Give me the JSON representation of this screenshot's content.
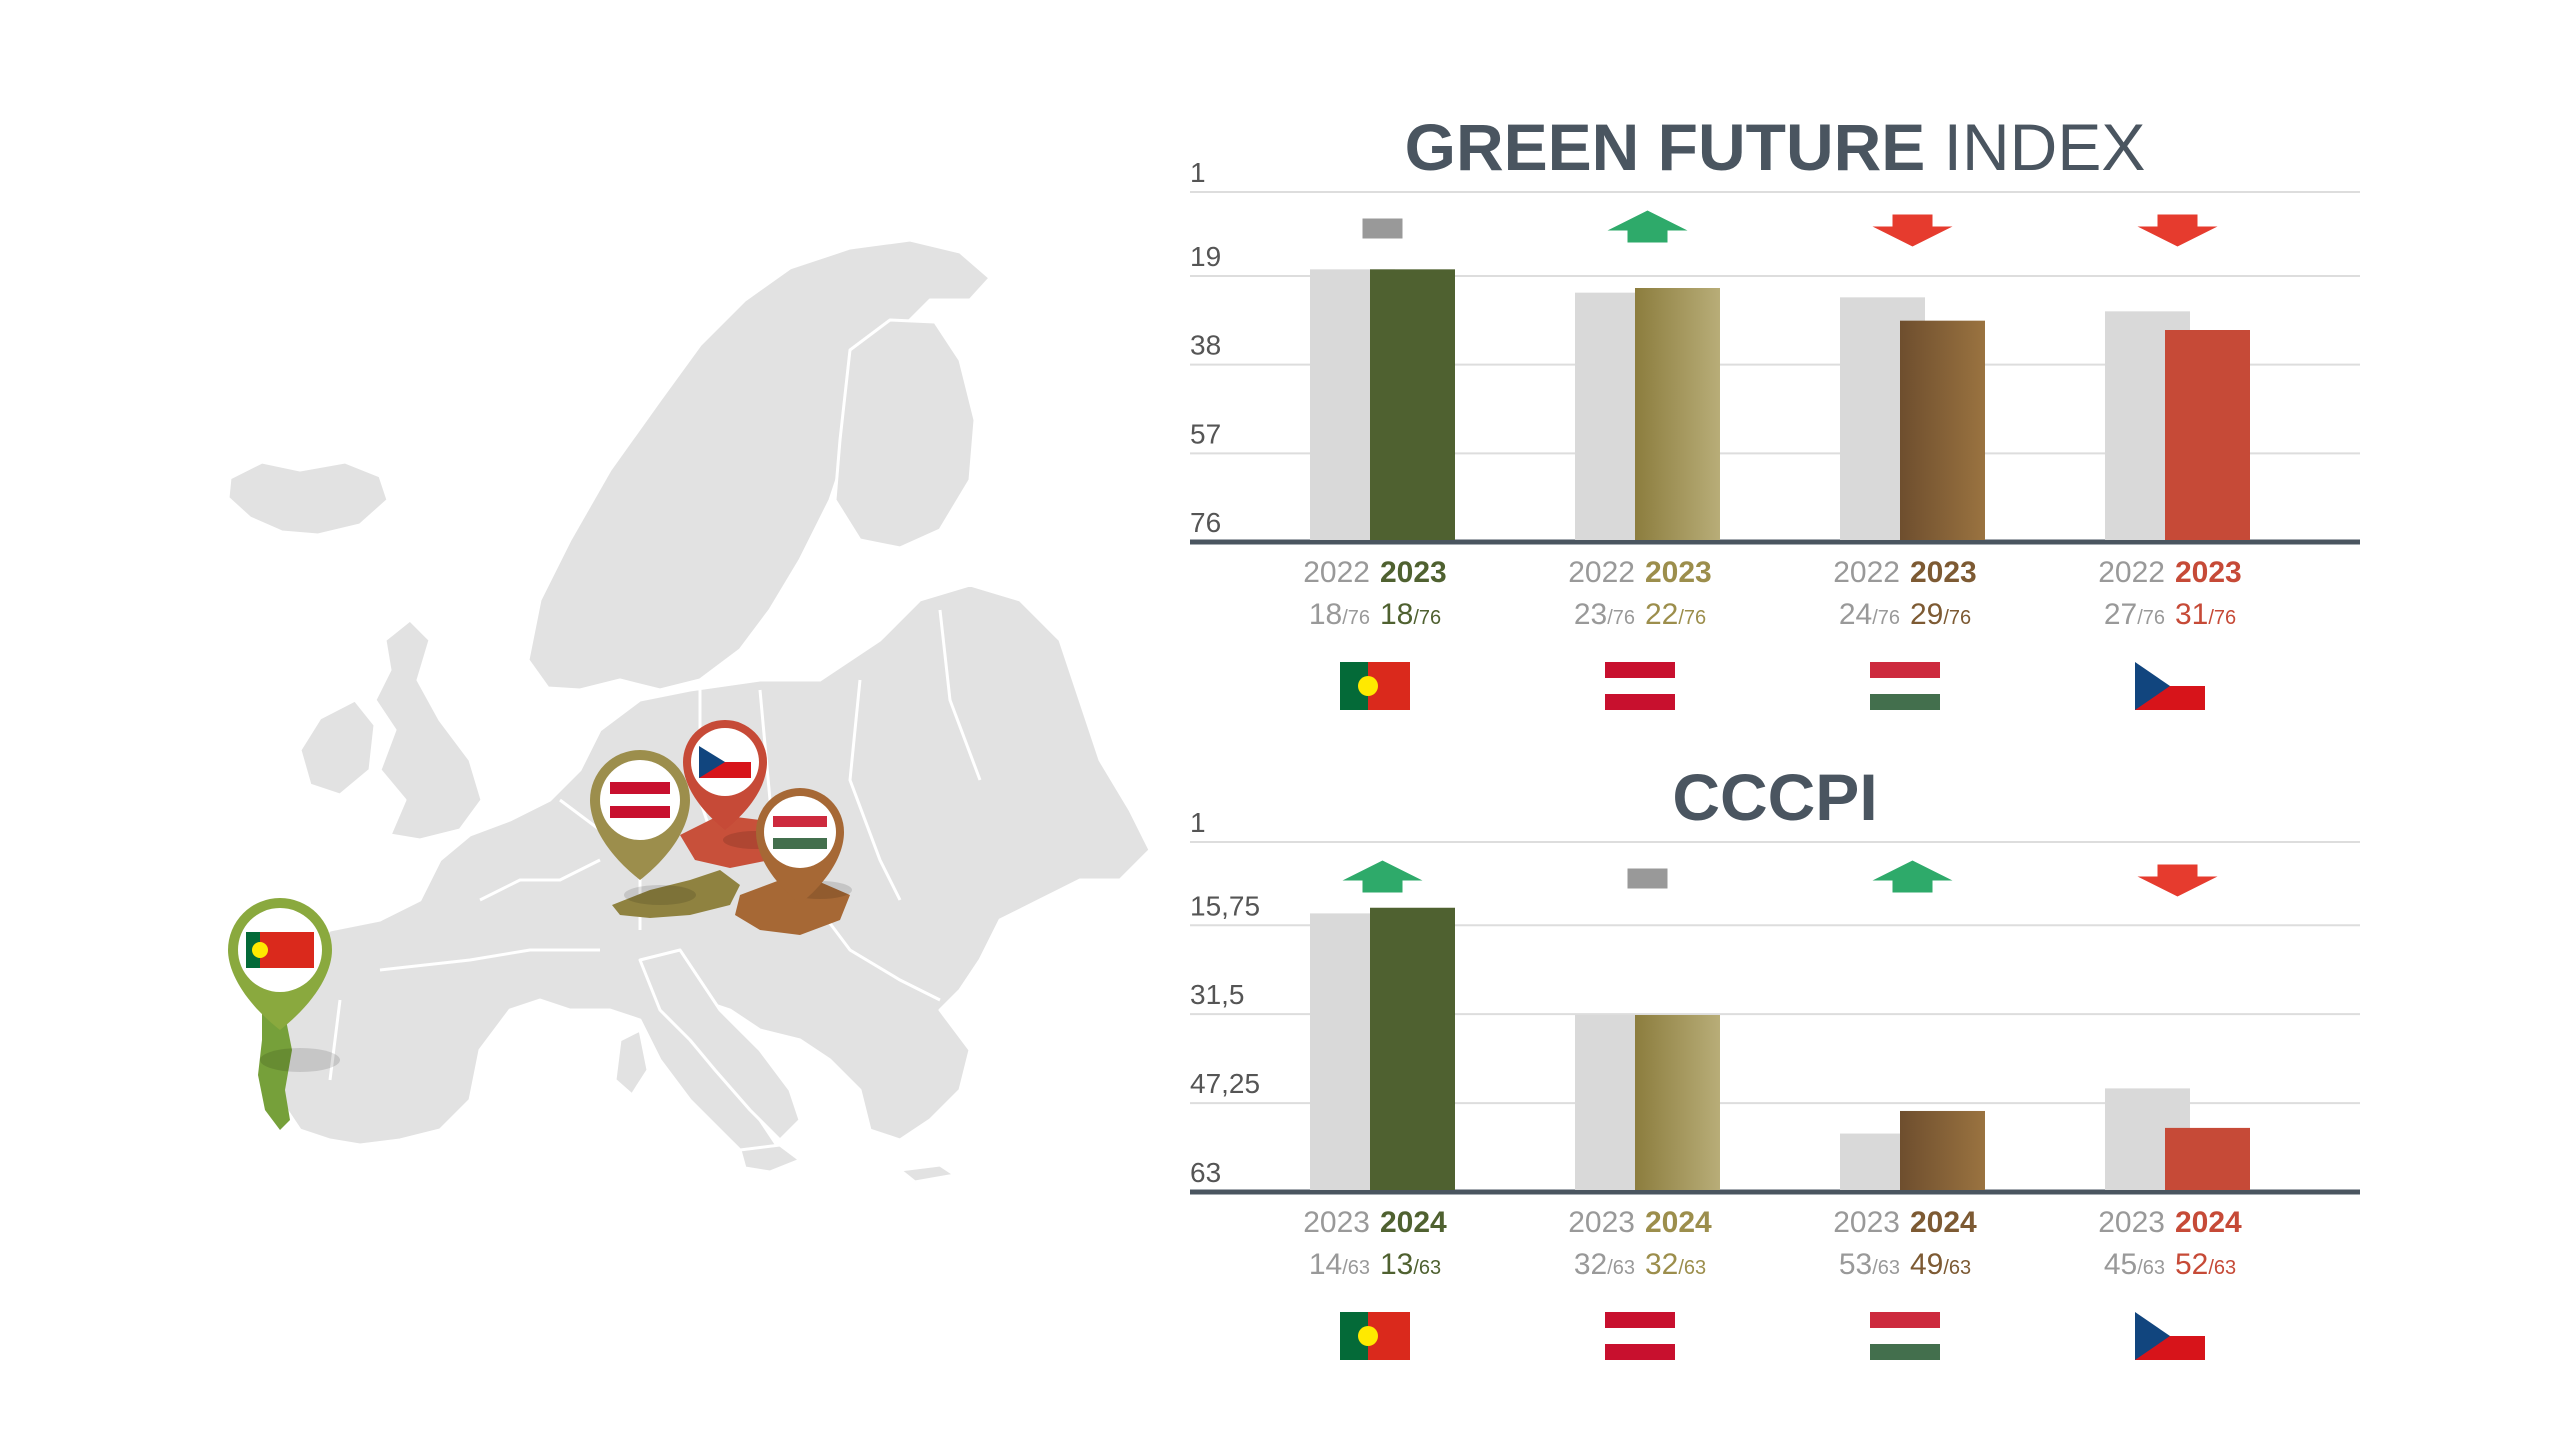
{
  "colors": {
    "portugal": "#4f6130",
    "austria": "#9c8e4c",
    "hungary": "#7d5a33",
    "czech": "#c64a37",
    "prev_bar": "#d9d9d9",
    "up": "#2eaa6a",
    "down": "#e63b2e",
    "same": "#999999",
    "title": "#4a5560",
    "tick": "#555555"
  },
  "countries": [
    {
      "id": "portugal",
      "flag": "portugal-flag",
      "pin": "portugal-pin"
    },
    {
      "id": "austria",
      "flag": "austria-flag",
      "pin": "austria-pin"
    },
    {
      "id": "hungary",
      "flag": "hungary-flag",
      "pin": "hungary-pin"
    },
    {
      "id": "czech",
      "flag": "czech-flag",
      "pin": "czech-pin"
    }
  ],
  "chart_data": [
    {
      "type": "bar",
      "title_bold": "GREEN FUTURE",
      "title_light": "INDEX",
      "y_ticks": [
        "1",
        "19",
        "38",
        "57",
        "76"
      ],
      "y_tick_values": [
        1,
        19,
        38,
        57,
        76
      ],
      "ylim": [
        76,
        1
      ],
      "y_inverted": true,
      "categories": [
        "Portugal",
        "Austria",
        "Hungary",
        "Czech Republic"
      ],
      "series": [
        {
          "name": "2022",
          "values": [
            18,
            23,
            24,
            27
          ]
        },
        {
          "name": "2023",
          "values": [
            18,
            22,
            29,
            31
          ]
        }
      ],
      "year_prev": "2022",
      "year_curr": "2023",
      "total": "/76",
      "prev_labels": [
        "18",
        "23",
        "24",
        "27"
      ],
      "curr_labels": [
        "18",
        "22",
        "29",
        "31"
      ],
      "trends": [
        "same",
        "up",
        "down",
        "down"
      ],
      "grid": true
    },
    {
      "type": "bar",
      "title_bold": "CCCPI",
      "title_light": "",
      "y_ticks": [
        "1",
        "15,75",
        "31,5",
        "47,25",
        "63"
      ],
      "y_tick_values": [
        1,
        15.75,
        31.5,
        47.25,
        63
      ],
      "ylim": [
        63,
        1
      ],
      "y_inverted": true,
      "categories": [
        "Portugal",
        "Austria",
        "Hungary",
        "Czech Republic"
      ],
      "series": [
        {
          "name": "2023",
          "values": [
            14,
            32,
            53,
            45
          ]
        },
        {
          "name": "2024",
          "values": [
            13,
            32,
            49,
            52
          ]
        }
      ],
      "year_prev": "2023",
      "year_curr": "2024",
      "total": "/63",
      "prev_labels": [
        "14",
        "32",
        "53",
        "45"
      ],
      "curr_labels": [
        "13",
        "32",
        "49",
        "52"
      ],
      "trends": [
        "up",
        "same",
        "up",
        "down"
      ],
      "grid": true
    }
  ]
}
